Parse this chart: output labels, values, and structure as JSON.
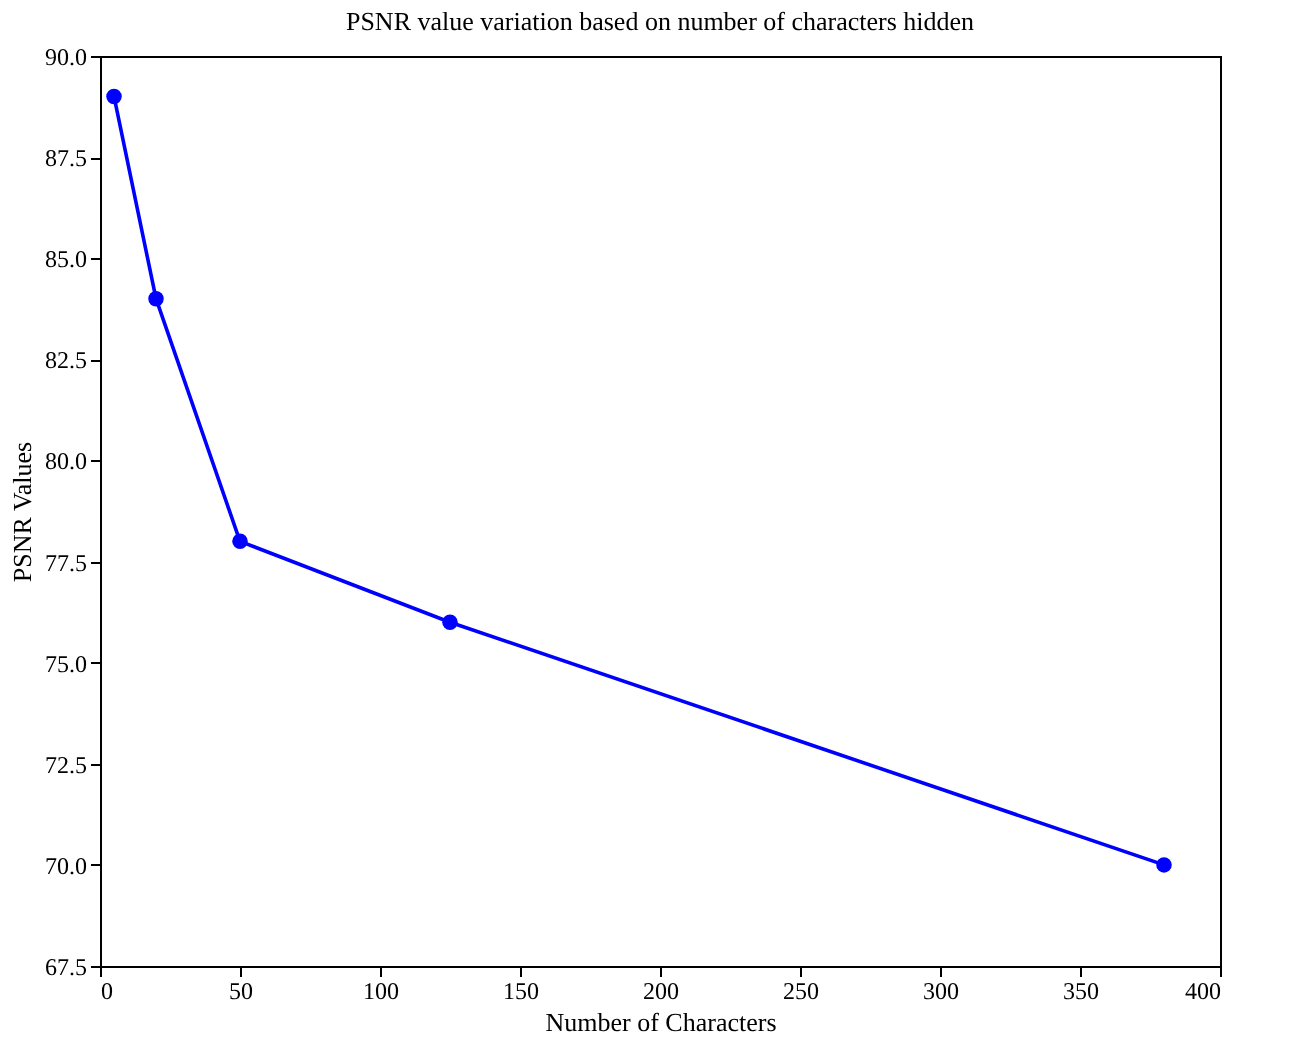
{
  "chart_data": {
    "type": "line",
    "title": "PSNR value variation based on number of characters hidden",
    "xlabel": "Number of Characters",
    "ylabel": "PSNR Values",
    "x": [
      5,
      20,
      50,
      125,
      380
    ],
    "series": [
      {
        "color": "#0000ff",
        "values": [
          89,
          84,
          78,
          76,
          70
        ]
      }
    ],
    "marker": "circle",
    "line_style": "solid",
    "grid": false,
    "xlim": [
      0,
      400
    ],
    "xticks": [
      0,
      50,
      100,
      150,
      200,
      250,
      300,
      350,
      400
    ],
    "ylim": [
      67.5,
      90
    ],
    "yticks": [
      67.5,
      {
        "value": 70,
        "label": "70.0"
      },
      72.5,
      {
        "value": 75,
        "label": "75.0"
      },
      77.5,
      {
        "value": 80,
        "label": "80.0"
      },
      82.5,
      {
        "value": 85,
        "label": "85.0"
      },
      87.5,
      {
        "value": 90,
        "label": "90.0"
      }
    ]
  }
}
